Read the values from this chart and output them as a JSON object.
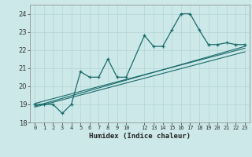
{
  "title": "",
  "xlabel": "Humidex (Indice chaleur)",
  "bg_color": "#cce8e8",
  "line_color": "#1a6b6b",
  "grid_color": "#b8d8d8",
  "xlim": [
    -0.5,
    23.5
  ],
  "ylim": [
    18.0,
    24.5
  ],
  "xticks": [
    0,
    1,
    2,
    3,
    4,
    5,
    6,
    7,
    8,
    9,
    10,
    12,
    13,
    14,
    15,
    16,
    17,
    18,
    19,
    20,
    21,
    22,
    23
  ],
  "yticks": [
    18,
    19,
    20,
    21,
    22,
    23,
    24
  ],
  "main_x": [
    0,
    1,
    2,
    3,
    4,
    5,
    6,
    7,
    8,
    9,
    10,
    12,
    13,
    14,
    15,
    16,
    17,
    18,
    19,
    20,
    21,
    22,
    23
  ],
  "main_y": [
    19.0,
    19.0,
    19.0,
    18.5,
    19.0,
    20.8,
    20.5,
    20.5,
    21.5,
    20.5,
    20.5,
    22.8,
    22.2,
    22.2,
    23.1,
    24.0,
    24.0,
    23.1,
    22.3,
    22.3,
    22.4,
    22.3,
    22.3
  ],
  "line1_x": [
    0,
    23
  ],
  "line1_y": [
    18.85,
    21.9
  ],
  "line2_x": [
    0,
    23
  ],
  "line2_y": [
    18.9,
    22.2
  ],
  "line3_x": [
    0,
    23
  ],
  "line3_y": [
    19.05,
    22.1
  ]
}
